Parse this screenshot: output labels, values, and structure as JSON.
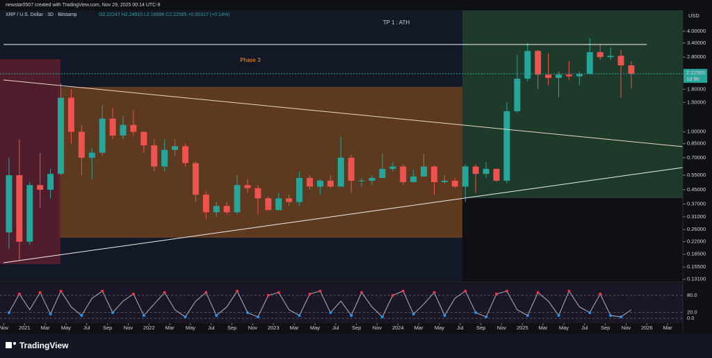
{
  "header": {
    "author_line": "newstar0507 created with TradingView.com, Nov 29, 2025 00:14 UTC-9",
    "symbol": "XRP / U.S. Dollar · 3D · Bitstamp",
    "ohlc": "O2.22247 H2.24910 L2.16698 C2.22565 +0.00317 (+0.14%)"
  },
  "chart_data": [
    {
      "type": "candlestick",
      "currency": "USD",
      "log_scale": true,
      "up_color": "#26a69a",
      "down_color": "#ef5350",
      "annotations": [
        "TP 1 : ATH",
        "Phase 3"
      ],
      "last_price": 2.22565,
      "countdown": "1d 9h",
      "xlim": [
        "2020-10-20",
        "2026-04-15"
      ],
      "xticks": [
        {
          "value": "2020-11",
          "label": "Nov"
        },
        {
          "value": "2021-01",
          "label": "2021"
        },
        {
          "value": "2021-03",
          "label": "Mar"
        },
        {
          "value": "2021-05",
          "label": "May"
        },
        {
          "value": "2021-07",
          "label": "Jul"
        },
        {
          "value": "2021-09",
          "label": "Sep"
        },
        {
          "value": "2021-11",
          "label": "Nov"
        },
        {
          "value": "2022-01",
          "label": "2022"
        },
        {
          "value": "2022-03",
          "label": "Mar"
        },
        {
          "value": "2022-05",
          "label": "May"
        },
        {
          "value": "2022-07",
          "label": "Jul"
        },
        {
          "value": "2022-09",
          "label": "Sep"
        },
        {
          "value": "2022-11",
          "label": "Nov"
        },
        {
          "value": "2023-01",
          "label": "2023"
        },
        {
          "value": "2023-03",
          "label": "Mar"
        },
        {
          "value": "2023-05",
          "label": "May"
        },
        {
          "value": "2023-07",
          "label": "Jul"
        },
        {
          "value": "2023-09",
          "label": "Sep"
        },
        {
          "value": "2023-11",
          "label": "Nov"
        },
        {
          "value": "2024-01",
          "label": "2024"
        },
        {
          "value": "2024-03",
          "label": "Mar"
        },
        {
          "value": "2024-05",
          "label": "May"
        },
        {
          "value": "2024-07",
          "label": "Jul"
        },
        {
          "value": "2024-09",
          "label": "Sep"
        },
        {
          "value": "2024-11",
          "label": "Nov"
        },
        {
          "value": "2025-01",
          "label": "2025"
        },
        {
          "value": "2025-03",
          "label": "Mar"
        },
        {
          "value": "2025-05",
          "label": "May"
        },
        {
          "value": "2025-07",
          "label": "Jul"
        },
        {
          "value": "2025-09",
          "label": "Sep"
        },
        {
          "value": "2025-11",
          "label": "Nov"
        },
        {
          "value": "2026-01",
          "label": "2026"
        },
        {
          "value": "2026-03",
          "label": "Mar"
        }
      ],
      "ylim": [
        0.127,
        5.33
      ],
      "yticks": [
        {
          "value": 4,
          "label": "4.00000"
        },
        {
          "value": 3.4,
          "label": "3.40000"
        },
        {
          "value": 2.8,
          "label": "2.80000"
        },
        {
          "value": 1.8,
          "label": "1.80000"
        },
        {
          "value": 1.5,
          "label": "1.50000"
        },
        {
          "value": 1,
          "label": "1.00000"
        },
        {
          "value": 0.85,
          "label": "0.85000"
        },
        {
          "value": 0.7,
          "label": "0.70000"
        },
        {
          "value": 0.55,
          "label": "0.55000"
        },
        {
          "value": 0.45,
          "label": "0.45000"
        },
        {
          "value": 0.37,
          "label": "0.37000"
        },
        {
          "value": 0.31,
          "label": "0.31000"
        },
        {
          "value": 0.26,
          "label": "0.26000"
        },
        {
          "value": 0.22,
          "label": "0.22000"
        },
        {
          "value": 0.185,
          "label": "0.18500"
        },
        {
          "value": 0.155,
          "label": "0.15500"
        },
        {
          "value": 0.131,
          "label": "0.13100"
        }
      ],
      "x": [
        "2020-11",
        "2020-12",
        "2021-01",
        "2021-02",
        "2021-03",
        "2021-04",
        "2021-05",
        "2021-06",
        "2021-07",
        "2021-08",
        "2021-09",
        "2021-10",
        "2021-11",
        "2021-12",
        "2022-01",
        "2022-02",
        "2022-03",
        "2022-04",
        "2022-05",
        "2022-06",
        "2022-07",
        "2022-08",
        "2022-09",
        "2022-10",
        "2022-11",
        "2022-12",
        "2023-01",
        "2023-02",
        "2023-03",
        "2023-04",
        "2023-05",
        "2023-06",
        "2023-07",
        "2023-08",
        "2023-09",
        "2023-10",
        "2023-11",
        "2023-12",
        "2024-01",
        "2024-02",
        "2024-03",
        "2024-04",
        "2024-05",
        "2024-06",
        "2024-07",
        "2024-08",
        "2024-09",
        "2024-10",
        "2024-11",
        "2024-12",
        "2025-01",
        "2025-02",
        "2025-03",
        "2025-04",
        "2025-05",
        "2025-06",
        "2025-07",
        "2025-08",
        "2025-09",
        "2025-10",
        "2025-11"
      ],
      "open": [
        0.25,
        0.55,
        0.22,
        0.48,
        0.45,
        0.56,
        1.6,
        1.0,
        0.7,
        0.75,
        1.2,
        0.95,
        1.1,
        1.0,
        0.83,
        0.62,
        0.78,
        0.82,
        0.65,
        0.42,
        0.33,
        0.36,
        0.33,
        0.48,
        0.46,
        0.4,
        0.34,
        0.4,
        0.38,
        0.53,
        0.47,
        0.51,
        0.47,
        0.7,
        0.51,
        0.51,
        0.53,
        0.6,
        0.62,
        0.5,
        0.54,
        0.62,
        0.5,
        0.51,
        0.47,
        0.62,
        0.56,
        0.6,
        0.51,
        1.33,
        2.08,
        3.05,
        2.2,
        2.1,
        2.2,
        2.15,
        2.22,
        3.0,
        2.8,
        2.85,
        2.5
      ],
      "high": [
        0.7,
        0.9,
        0.5,
        0.75,
        0.6,
        1.95,
        1.8,
        1.1,
        0.8,
        1.45,
        1.4,
        1.25,
        1.35,
        1.0,
        0.9,
        0.9,
        0.9,
        0.85,
        0.67,
        0.44,
        0.38,
        0.38,
        0.55,
        0.52,
        0.48,
        0.41,
        0.43,
        0.42,
        0.58,
        0.55,
        0.52,
        0.55,
        0.93,
        0.73,
        0.53,
        0.55,
        0.74,
        0.66,
        0.64,
        0.59,
        0.74,
        0.63,
        0.55,
        0.53,
        0.64,
        0.64,
        0.66,
        0.6,
        1.5,
        2.9,
        3.4,
        3.1,
        2.95,
        2.3,
        2.65,
        2.3,
        3.65,
        3.35,
        3.2,
        3.1,
        2.65
      ],
      "low": [
        0.2,
        0.17,
        0.21,
        0.35,
        0.4,
        0.55,
        0.85,
        0.55,
        0.52,
        0.72,
        0.9,
        0.9,
        0.95,
        0.75,
        0.58,
        0.58,
        0.72,
        0.62,
        0.38,
        0.3,
        0.31,
        0.32,
        0.32,
        0.43,
        0.32,
        0.34,
        0.34,
        0.36,
        0.36,
        0.45,
        0.42,
        0.46,
        0.47,
        0.43,
        0.47,
        0.48,
        0.53,
        0.58,
        0.48,
        0.5,
        0.55,
        0.42,
        0.49,
        0.46,
        0.38,
        0.43,
        0.53,
        0.5,
        0.49,
        1.3,
        2.0,
        1.8,
        1.9,
        1.61,
        2.05,
        1.9,
        2.2,
        2.7,
        2.7,
        1.6,
        1.82
      ],
      "close": [
        0.55,
        0.22,
        0.48,
        0.45,
        0.56,
        1.6,
        1.0,
        0.7,
        0.75,
        1.2,
        0.95,
        1.1,
        1.0,
        0.83,
        0.62,
        0.78,
        0.82,
        0.65,
        0.42,
        0.33,
        0.36,
        0.33,
        0.48,
        0.46,
        0.4,
        0.34,
        0.4,
        0.38,
        0.53,
        0.47,
        0.51,
        0.47,
        0.7,
        0.51,
        0.51,
        0.53,
        0.6,
        0.62,
        0.5,
        0.54,
        0.62,
        0.5,
        0.51,
        0.47,
        0.62,
        0.56,
        0.6,
        0.51,
        1.33,
        2.08,
        3.05,
        2.2,
        2.1,
        2.2,
        2.15,
        2.22,
        3.0,
        2.8,
        2.85,
        2.5,
        2.22565
      ]
    },
    {
      "type": "line",
      "color": "#b2b5be",
      "ylim": [
        -17,
        121
      ],
      "yticks": [
        {
          "value": 80,
          "label": "80.0"
        },
        {
          "value": 20,
          "label": "20.0"
        },
        {
          "value": 0,
          "label": "0.0"
        }
      ],
      "x": [
        "2020-11",
        "2020-12",
        "2021-01",
        "2021-02",
        "2021-03",
        "2021-04",
        "2021-05",
        "2021-06",
        "2021-07",
        "2021-08",
        "2021-09",
        "2021-10",
        "2021-11",
        "2021-12",
        "2022-01",
        "2022-02",
        "2022-03",
        "2022-04",
        "2022-05",
        "2022-06",
        "2022-07",
        "2022-08",
        "2022-09",
        "2022-10",
        "2022-11",
        "2022-12",
        "2023-01",
        "2023-02",
        "2023-03",
        "2023-04",
        "2023-05",
        "2023-06",
        "2023-07",
        "2023-08",
        "2023-09",
        "2023-10",
        "2023-11",
        "2023-12",
        "2024-01",
        "2024-02",
        "2024-03",
        "2024-04",
        "2024-05",
        "2024-06",
        "2024-07",
        "2024-08",
        "2024-09",
        "2024-10",
        "2024-11",
        "2024-12",
        "2025-01",
        "2025-02",
        "2025-03",
        "2025-04",
        "2025-05",
        "2025-06",
        "2025-07",
        "2025-08",
        "2025-09",
        "2025-10",
        "2025-11"
      ],
      "values": [
        20,
        85,
        30,
        90,
        15,
        95,
        40,
        10,
        70,
        95,
        20,
        60,
        85,
        10,
        50,
        90,
        30,
        5,
        60,
        90,
        10,
        40,
        95,
        20,
        5,
        80,
        90,
        30,
        10,
        85,
        95,
        20,
        60,
        10,
        90,
        40,
        5,
        80,
        95,
        15,
        50,
        90,
        10,
        70,
        95,
        20,
        5,
        85,
        95,
        30,
        10,
        90,
        60,
        10,
        95,
        40,
        20,
        85,
        10,
        5,
        30
      ]
    }
  ],
  "footer": {
    "brand": "TradingView"
  }
}
